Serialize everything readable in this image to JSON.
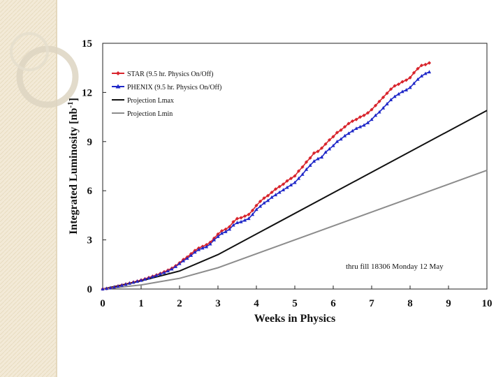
{
  "colors": {
    "sidebar": "#f3ead7",
    "ring": "#ddd5c2",
    "star": "#d8242c",
    "phenix": "#1f28c8",
    "lmax": "#111111",
    "lmin": "#8c8c8c"
  },
  "chart_data": {
    "type": "line",
    "title": "",
    "xlabel": "Weeks in Physics",
    "ylabel": "Integrated Luminosity [nb",
    "ylabel_sup": "-1",
    "ylabel_close": "]",
    "xlim": [
      0,
      10
    ],
    "ylim": [
      0,
      15
    ],
    "xticks": [
      0,
      1,
      2,
      3,
      4,
      5,
      6,
      7,
      8,
      9,
      10
    ],
    "yticks": [
      0,
      3,
      6,
      9,
      12,
      15
    ],
    "annotation": "thru fill 18306 Monday 12 May",
    "legend_position": "top-left",
    "series": [
      {
        "name": "STAR (9.5 hr. Physics On/Off)",
        "style": "line-with-diamond-markers",
        "x": [
          0,
          0.1,
          0.2,
          0.3,
          0.4,
          0.5,
          0.6,
          0.7,
          0.8,
          0.9,
          1.0,
          1.1,
          1.2,
          1.3,
          1.4,
          1.5,
          1.6,
          1.7,
          1.8,
          1.9,
          2.0,
          2.1,
          2.2,
          2.3,
          2.4,
          2.5,
          2.6,
          2.7,
          2.8,
          2.9,
          3.0,
          3.1,
          3.2,
          3.3,
          3.4,
          3.5,
          3.6,
          3.7,
          3.8,
          3.9,
          4.0,
          4.1,
          4.2,
          4.3,
          4.4,
          4.5,
          4.6,
          4.7,
          4.8,
          4.9,
          5.0,
          5.1,
          5.2,
          5.3,
          5.4,
          5.5,
          5.6,
          5.7,
          5.8,
          5.9,
          6.0,
          6.1,
          6.2,
          6.3,
          6.4,
          6.5,
          6.6,
          6.7,
          6.8,
          6.9,
          7.0,
          7.1,
          7.2,
          7.3,
          7.4,
          7.5,
          7.6,
          7.7,
          7.8,
          7.9,
          8.0,
          8.1,
          8.2,
          8.3,
          8.4,
          8.5
        ],
        "values": [
          0,
          0.03,
          0.07,
          0.12,
          0.18,
          0.24,
          0.3,
          0.36,
          0.42,
          0.48,
          0.55,
          0.62,
          0.7,
          0.78,
          0.86,
          0.95,
          1.05,
          1.15,
          1.27,
          1.42,
          1.6,
          1.8,
          1.95,
          2.15,
          2.35,
          2.5,
          2.6,
          2.7,
          2.85,
          3.1,
          3.35,
          3.55,
          3.65,
          3.8,
          4.1,
          4.3,
          4.35,
          4.45,
          4.55,
          4.8,
          5.1,
          5.35,
          5.55,
          5.7,
          5.9,
          6.1,
          6.25,
          6.4,
          6.6,
          6.75,
          6.9,
          7.2,
          7.45,
          7.75,
          8.0,
          8.3,
          8.4,
          8.6,
          8.85,
          9.1,
          9.3,
          9.55,
          9.7,
          9.9,
          10.1,
          10.25,
          10.35,
          10.5,
          10.6,
          10.75,
          10.95,
          11.2,
          11.45,
          11.7,
          11.95,
          12.2,
          12.4,
          12.5,
          12.65,
          12.75,
          12.9,
          13.2,
          13.45,
          13.65,
          13.7,
          13.8
        ]
      },
      {
        "name": "PHENIX (9.5 hr. Physics On/Off)",
        "style": "line-with-triangle-markers",
        "x": [
          0,
          0.1,
          0.2,
          0.3,
          0.4,
          0.5,
          0.6,
          0.7,
          0.8,
          0.9,
          1.0,
          1.1,
          1.2,
          1.3,
          1.4,
          1.5,
          1.6,
          1.7,
          1.8,
          1.9,
          2.0,
          2.1,
          2.2,
          2.3,
          2.4,
          2.5,
          2.6,
          2.7,
          2.8,
          2.9,
          3.0,
          3.1,
          3.2,
          3.3,
          3.4,
          3.5,
          3.6,
          3.7,
          3.8,
          3.9,
          4.0,
          4.1,
          4.2,
          4.3,
          4.4,
          4.5,
          4.6,
          4.7,
          4.8,
          4.9,
          5.0,
          5.1,
          5.2,
          5.3,
          5.4,
          5.5,
          5.6,
          5.7,
          5.8,
          5.9,
          6.0,
          6.1,
          6.2,
          6.3,
          6.4,
          6.5,
          6.6,
          6.7,
          6.8,
          6.9,
          7.0,
          7.1,
          7.2,
          7.3,
          7.4,
          7.5,
          7.6,
          7.7,
          7.8,
          7.9,
          8.0,
          8.1,
          8.2,
          8.3,
          8.4,
          8.5
        ],
        "values": [
          0,
          0.03,
          0.07,
          0.12,
          0.17,
          0.23,
          0.29,
          0.35,
          0.41,
          0.47,
          0.53,
          0.6,
          0.67,
          0.75,
          0.83,
          0.92,
          1.0,
          1.1,
          1.22,
          1.37,
          1.55,
          1.72,
          1.87,
          2.05,
          2.25,
          2.4,
          2.5,
          2.58,
          2.75,
          3.0,
          3.2,
          3.4,
          3.5,
          3.65,
          3.9,
          4.05,
          4.1,
          4.2,
          4.3,
          4.55,
          4.85,
          5.05,
          5.25,
          5.4,
          5.6,
          5.75,
          5.9,
          6.05,
          6.2,
          6.35,
          6.5,
          6.75,
          7.0,
          7.3,
          7.55,
          7.8,
          7.95,
          8.05,
          8.35,
          8.55,
          8.75,
          9.0,
          9.15,
          9.35,
          9.5,
          9.65,
          9.8,
          9.9,
          10.0,
          10.15,
          10.35,
          10.6,
          10.8,
          11.05,
          11.3,
          11.55,
          11.75,
          11.9,
          12.05,
          12.15,
          12.3,
          12.55,
          12.8,
          13.0,
          13.15,
          13.25
        ]
      },
      {
        "name": "Projection Lmax",
        "style": "line",
        "x": [
          0,
          1,
          2,
          3,
          10
        ],
        "values": [
          0,
          0.5,
          1.1,
          2.1,
          10.9
        ]
      },
      {
        "name": "Projection Lmin",
        "style": "line",
        "x": [
          0,
          1,
          2,
          3,
          10
        ],
        "values": [
          0,
          0.25,
          0.65,
          1.3,
          7.25
        ]
      }
    ]
  }
}
